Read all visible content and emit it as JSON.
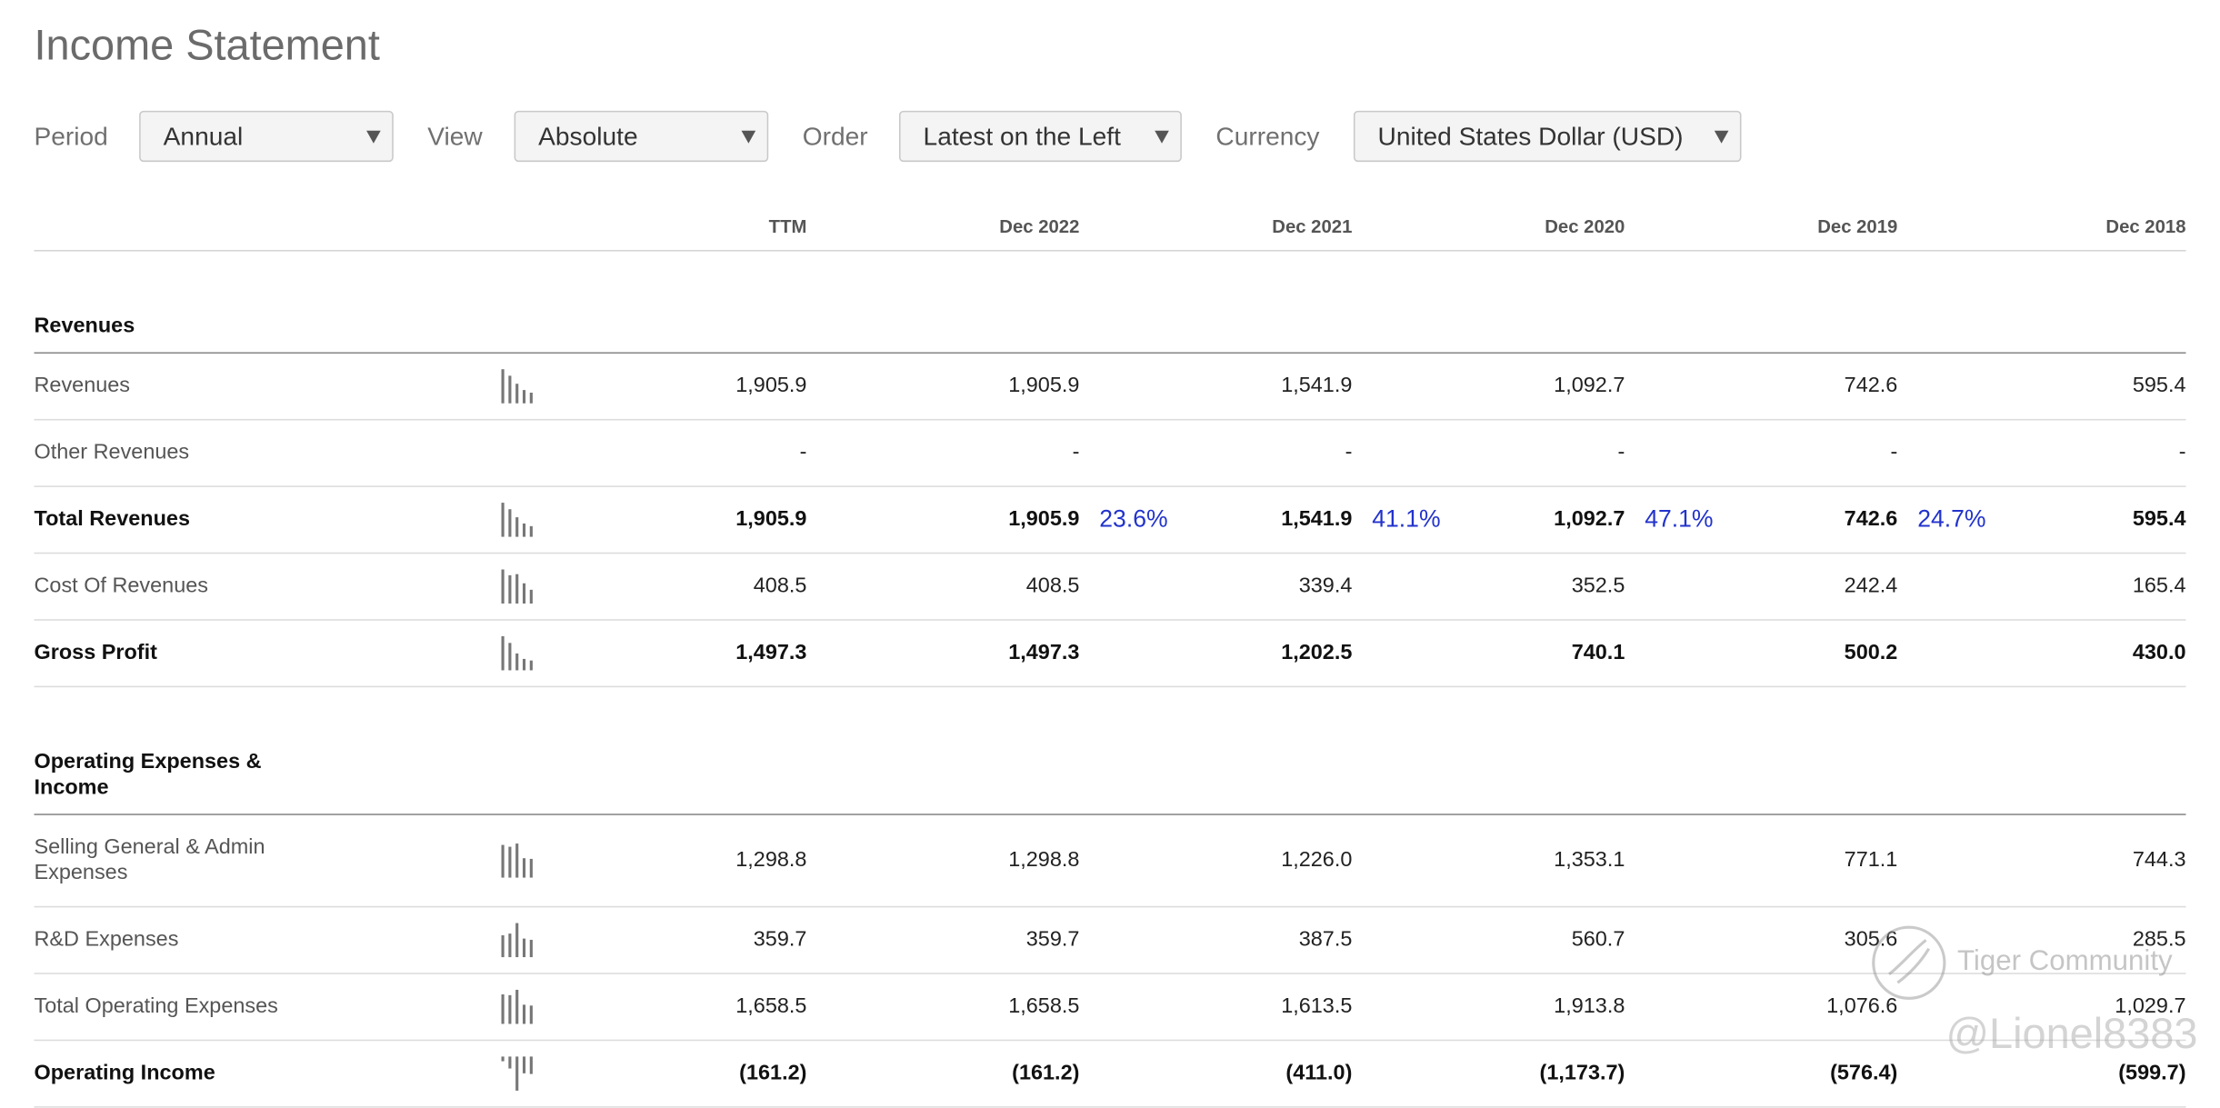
{
  "header": {
    "title": "Income Statement"
  },
  "filters": [
    {
      "label": "Period",
      "value": "Annual"
    },
    {
      "label": "View",
      "value": "Absolute"
    },
    {
      "label": "Order",
      "value": "Latest on the Left"
    },
    {
      "label": "Currency",
      "value": "United States Dollar (USD)"
    }
  ],
  "table": {
    "columns": [
      "TTM",
      "Dec 2022",
      "Dec 2021",
      "Dec 2020",
      "Dec 2019",
      "Dec 2018"
    ],
    "sections": [
      {
        "title": "Revenues",
        "rows": [
          {
            "label": "Revenues",
            "bold": false,
            "sparkline": true,
            "values": [
              "1,905.9",
              "1,905.9",
              "1,541.9",
              "1,092.7",
              "742.6",
              "595.4"
            ]
          },
          {
            "label": "Other Revenues",
            "bold": false,
            "sparkline": false,
            "values": [
              "-",
              "-",
              "-",
              "-",
              "-",
              "-"
            ]
          },
          {
            "label": "Total Revenues",
            "bold": true,
            "sparkline": true,
            "values": [
              "1,905.9",
              "1,905.9",
              "1,541.9",
              "1,092.7",
              "742.6",
              "595.4"
            ],
            "growth": [
              "23.6%",
              "41.1%",
              "47.1%",
              "24.7%"
            ]
          },
          {
            "label": "Cost Of Revenues",
            "bold": false,
            "sparkline": true,
            "values": [
              "408.5",
              "408.5",
              "339.4",
              "352.5",
              "242.4",
              "165.4"
            ]
          },
          {
            "label": "Gross Profit",
            "bold": true,
            "sparkline": true,
            "values": [
              "1,497.3",
              "1,497.3",
              "1,202.5",
              "740.1",
              "500.2",
              "430.0"
            ]
          }
        ]
      },
      {
        "title": "Operating Expenses & Income",
        "rows": [
          {
            "label": "Selling General & Admin Expenses",
            "bold": false,
            "sparkline": true,
            "values": [
              "1,298.8",
              "1,298.8",
              "1,226.0",
              "1,353.1",
              "771.1",
              "744.3"
            ]
          },
          {
            "label": "R&D Expenses",
            "bold": false,
            "sparkline": true,
            "values": [
              "359.7",
              "359.7",
              "387.5",
              "560.7",
              "305.6",
              "285.5"
            ]
          },
          {
            "label": "Total Operating Expenses",
            "bold": false,
            "sparkline": true,
            "values": [
              "1,658.5",
              "1,658.5",
              "1,613.5",
              "1,913.8",
              "1,076.6",
              "1,029.7"
            ]
          },
          {
            "label": "Operating Income",
            "bold": true,
            "sparkline": true,
            "values": [
              "(161.2)",
              "(161.2)",
              "(411.0)",
              "(1,173.7)",
              "(576.4)",
              "(599.7)"
            ]
          }
        ]
      }
    ]
  },
  "watermark": {
    "brand": "Tiger Community",
    "user": "@Lionel8383"
  }
}
